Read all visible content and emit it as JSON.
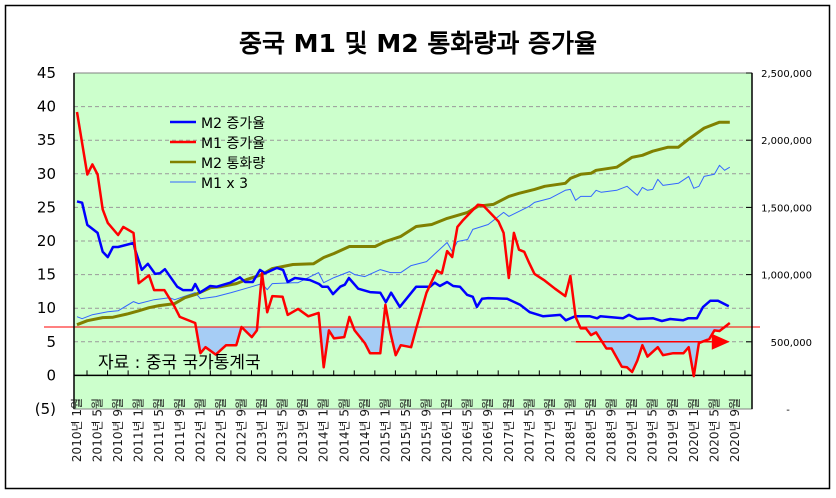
{
  "chart_data": {
    "type": "line",
    "title": "중국 M1 및 M2 통화량과 증가율",
    "source_note": "자료 : 중국 국가통계국",
    "x_unit": "months since 2010년 1월",
    "x_tick_labels": [
      "2010년 1월",
      "2010년 5월",
      "2010년 9월",
      "2011년 1월",
      "2011년 5월",
      "2011년 9월",
      "2012년 1월",
      "2012년 5월",
      "2012년 9월",
      "2013년 1월",
      "2013년 5월",
      "2013년 9월",
      "2014년 1월",
      "2014년 5월",
      "2014년 9월",
      "2015년 1월",
      "2015년 5월",
      "2015년 9월",
      "2016년 1월",
      "2016년 5월",
      "2016년 9월",
      "2017년 1월",
      "2017년 5월",
      "2017년 9월",
      "2018년 1월",
      "2018년 5월",
      "2018년 9월",
      "2019년 1월",
      "2019년 5월",
      "2019년 9월",
      "2020년 1월",
      "2020년 5월",
      "2020년 9월"
    ],
    "y_left": {
      "range": [
        -5,
        45
      ],
      "ticks": [
        -5,
        0,
        5,
        10,
        15,
        20,
        25,
        30,
        35,
        40,
        45
      ],
      "tick_labels": [
        "(5)",
        "0",
        "5",
        "10",
        "15",
        "20",
        "25",
        "30",
        "35",
        "40",
        "45"
      ]
    },
    "y_right": {
      "range": [
        0,
        2500000
      ],
      "ticks": [
        0,
        500000,
        1000000,
        1500000,
        2000000,
        2500000
      ],
      "tick_labels": [
        "-",
        "500,000",
        "1,000,000",
        "1,500,000",
        "2,000,000",
        "2,500,000"
      ]
    },
    "grid": "horizontal dashed",
    "legend_position": "top-left",
    "reference_line": 7.2,
    "arrow": {
      "from_x": 97,
      "to_x": 127,
      "y": 5
    },
    "colors": {
      "bg": "#ccffcc",
      "m2_growth": "#0000ff",
      "m1_growth": "#ff0000",
      "m2_amount": "#808000",
      "m1x3": "#3366ff",
      "shade": "#a6cdf5"
    },
    "series": [
      {
        "name": "M2 증가율",
        "axis": "left",
        "points": [
          [
            0,
            25.9
          ],
          [
            1,
            25.7
          ],
          [
            2,
            22.4
          ],
          [
            4,
            21.2
          ],
          [
            5,
            18.4
          ],
          [
            6,
            17.6
          ],
          [
            7,
            19.1
          ],
          [
            8,
            19.1
          ],
          [
            11,
            19.7
          ],
          [
            11.3,
            18.7
          ],
          [
            12.6,
            15.7
          ],
          [
            13.8,
            16.6
          ],
          [
            15.2,
            15.1
          ],
          [
            16.1,
            15.2
          ],
          [
            17.1,
            15.8
          ],
          [
            19.5,
            13.2
          ],
          [
            20.6,
            12.7
          ],
          [
            22.4,
            12.7
          ],
          [
            23,
            13.6
          ],
          [
            23.9,
            12.3
          ],
          [
            25.9,
            13.3
          ],
          [
            27.2,
            13.2
          ],
          [
            29.8,
            13.8
          ],
          [
            31.7,
            14.6
          ],
          [
            32.7,
            13.9
          ],
          [
            34.2,
            13.9
          ],
          [
            35.6,
            15.7
          ],
          [
            36.6,
            15.2
          ],
          [
            38.9,
            16.0
          ],
          [
            40.1,
            15.7
          ],
          [
            41,
            13.9
          ],
          [
            42.4,
            14.5
          ],
          [
            45.3,
            14.2
          ],
          [
            47.1,
            13.6
          ],
          [
            47.7,
            13.2
          ],
          [
            48.8,
            13.2
          ],
          [
            49.8,
            12.1
          ],
          [
            51.2,
            13.2
          ],
          [
            52.1,
            13.5
          ],
          [
            52.9,
            14.5
          ],
          [
            54.7,
            12.9
          ],
          [
            57,
            12.4
          ],
          [
            59,
            12.3
          ],
          [
            60.1,
            10.9
          ],
          [
            61.1,
            12.3
          ],
          [
            62.8,
            10.2
          ],
          [
            66,
            13.2
          ],
          [
            68.7,
            13.2
          ],
          [
            69.6,
            13.8
          ],
          [
            70.6,
            13.3
          ],
          [
            72,
            13.9
          ],
          [
            73.2,
            13.3
          ],
          [
            74.5,
            13.2
          ],
          [
            75.9,
            12.0
          ],
          [
            77,
            11.7
          ],
          [
            77.8,
            10.2
          ],
          [
            78.8,
            11.4
          ],
          [
            80,
            11.5
          ],
          [
            83.7,
            11.4
          ],
          [
            86.2,
            10.5
          ],
          [
            88.1,
            9.4
          ],
          [
            90.7,
            8.8
          ],
          [
            94,
            9.0
          ],
          [
            95.1,
            8.2
          ],
          [
            96.9,
            8.8
          ],
          [
            99.8,
            8.8
          ],
          [
            101.2,
            8.5
          ],
          [
            101.8,
            8.8
          ],
          [
            106.2,
            8.5
          ],
          [
            107.4,
            9.0
          ],
          [
            109,
            8.4
          ],
          [
            112.1,
            8.5
          ],
          [
            113.8,
            8.1
          ],
          [
            115.4,
            8.4
          ],
          [
            117.9,
            8.2
          ],
          [
            118.9,
            8.5
          ],
          [
            120.6,
            8.5
          ],
          [
            121.8,
            10.2
          ],
          [
            123.2,
            11.1
          ],
          [
            124.7,
            11.1
          ],
          [
            126.8,
            10.3
          ]
        ]
      },
      {
        "name": "M1 증가율",
        "axis": "left",
        "points": [
          [
            0,
            39.2
          ],
          [
            2,
            29.9
          ],
          [
            3,
            31.4
          ],
          [
            4,
            29.9
          ],
          [
            5,
            24.7
          ],
          [
            6,
            22.7
          ],
          [
            8,
            20.9
          ],
          [
            9,
            22.1
          ],
          [
            11,
            21.2
          ],
          [
            12,
            13.7
          ],
          [
            14,
            14.9
          ],
          [
            15,
            12.7
          ],
          [
            17,
            12.7
          ],
          [
            19,
            10.2
          ],
          [
            20,
            8.7
          ],
          [
            23,
            7.8
          ],
          [
            24,
            3.3
          ],
          [
            25,
            4.2
          ],
          [
            27,
            3.1
          ],
          [
            29,
            4.5
          ],
          [
            31,
            4.5
          ],
          [
            32,
            7.2
          ],
          [
            34,
            5.7
          ],
          [
            35,
            6.7
          ],
          [
            36,
            15.2
          ],
          [
            37,
            9.4
          ],
          [
            38,
            11.8
          ],
          [
            40,
            11.7
          ],
          [
            41,
            9.0
          ],
          [
            43,
            9.9
          ],
          [
            45,
            8.8
          ],
          [
            47,
            9.3
          ],
          [
            48,
            1.2
          ],
          [
            49,
            6.7
          ],
          [
            50,
            5.5
          ],
          [
            52,
            5.7
          ],
          [
            53,
            8.7
          ],
          [
            54,
            6.7
          ],
          [
            56,
            4.8
          ],
          [
            57,
            3.3
          ],
          [
            59,
            3.3
          ],
          [
            60,
            10.5
          ],
          [
            61,
            6.3
          ],
          [
            62,
            3.0
          ],
          [
            63,
            4.5
          ],
          [
            65,
            4.2
          ],
          [
            66,
            7.0
          ],
          [
            68,
            12.3
          ],
          [
            70,
            15.6
          ],
          [
            71,
            15.2
          ],
          [
            72,
            18.5
          ],
          [
            73,
            17.6
          ],
          [
            74,
            22.1
          ],
          [
            75,
            23.0
          ],
          [
            78,
            25.4
          ],
          [
            79,
            25.3
          ],
          [
            82,
            22.9
          ],
          [
            83,
            21.2
          ],
          [
            84,
            14.5
          ],
          [
            85,
            21.2
          ],
          [
            86,
            18.7
          ],
          [
            87,
            18.4
          ],
          [
            88,
            16.7
          ],
          [
            89,
            15.1
          ],
          [
            91,
            14.1
          ],
          [
            93,
            12.9
          ],
          [
            95,
            11.8
          ],
          [
            96,
            14.8
          ],
          [
            97,
            8.7
          ],
          [
            98,
            7.0
          ],
          [
            99,
            7.0
          ],
          [
            100,
            6.0
          ],
          [
            101,
            6.4
          ],
          [
            103,
            4.0
          ],
          [
            104,
            4.0
          ],
          [
            106,
            1.3
          ],
          [
            107,
            1.2
          ],
          [
            108,
            0.5
          ],
          [
            109,
            2.2
          ],
          [
            110,
            4.5
          ],
          [
            111,
            2.8
          ],
          [
            113,
            4.2
          ],
          [
            114,
            3.0
          ],
          [
            116,
            3.3
          ],
          [
            118,
            3.3
          ],
          [
            119,
            4.2
          ],
          [
            120,
            -0.1
          ],
          [
            121,
            4.8
          ],
          [
            123,
            5.4
          ],
          [
            124,
            6.7
          ],
          [
            125,
            6.6
          ],
          [
            127,
            7.8
          ]
        ]
      },
      {
        "name": "M2 통화량",
        "axis": "right",
        "points": [
          [
            0,
            627000
          ],
          [
            2,
            657000
          ],
          [
            5,
            680000
          ],
          [
            7,
            683000
          ],
          [
            10,
            709000
          ],
          [
            12,
            731000
          ],
          [
            14,
            754000
          ],
          [
            16,
            769000
          ],
          [
            19,
            784000
          ],
          [
            21,
            828000
          ],
          [
            23,
            851000
          ],
          [
            26,
            903000
          ],
          [
            28,
            910000
          ],
          [
            31,
            933000
          ],
          [
            33,
            963000
          ],
          [
            36,
            1000000
          ],
          [
            38,
            1045000
          ],
          [
            42,
            1075000
          ],
          [
            46,
            1080000
          ],
          [
            48,
            1127000
          ],
          [
            50,
            1157000
          ],
          [
            53,
            1209000
          ],
          [
            58,
            1209000
          ],
          [
            60,
            1246000
          ],
          [
            63,
            1284000
          ],
          [
            66,
            1358000
          ],
          [
            69,
            1373000
          ],
          [
            72,
            1418000
          ],
          [
            76,
            1463000
          ],
          [
            78,
            1508000
          ],
          [
            81,
            1522000
          ],
          [
            84,
            1582000
          ],
          [
            86,
            1605000
          ],
          [
            89,
            1634000
          ],
          [
            91,
            1657000
          ],
          [
            95,
            1679000
          ],
          [
            96,
            1716000
          ],
          [
            98,
            1746000
          ],
          [
            100,
            1754000
          ],
          [
            101,
            1776000
          ],
          [
            105,
            1799000
          ],
          [
            108,
            1873000
          ],
          [
            110,
            1888000
          ],
          [
            112,
            1918000
          ],
          [
            115,
            1948000
          ],
          [
            117,
            1948000
          ],
          [
            119,
            2008000
          ],
          [
            122,
            2090000
          ],
          [
            125,
            2134000
          ],
          [
            127,
            2134000
          ]
        ]
      },
      {
        "name": "M1 x 3",
        "axis": "right",
        "points": [
          [
            0,
            687000
          ],
          [
            1,
            672000
          ],
          [
            3,
            702000
          ],
          [
            6,
            724000
          ],
          [
            8,
            731000
          ],
          [
            11,
            799000
          ],
          [
            12,
            784000
          ],
          [
            15,
            813000
          ],
          [
            18,
            828000
          ],
          [
            19,
            813000
          ],
          [
            23,
            866000
          ],
          [
            24,
            821000
          ],
          [
            27,
            836000
          ],
          [
            30,
            866000
          ],
          [
            34,
            910000
          ],
          [
            36,
            933000
          ],
          [
            37,
            888000
          ],
          [
            38,
            933000
          ],
          [
            42,
            940000
          ],
          [
            43,
            940000
          ],
          [
            47,
            1015000
          ],
          [
            48,
            940000
          ],
          [
            50,
            978000
          ],
          [
            53,
            1022000
          ],
          [
            54,
            1000000
          ],
          [
            56,
            985000
          ],
          [
            59,
            1037000
          ],
          [
            61,
            1015000
          ],
          [
            63,
            1015000
          ],
          [
            65,
            1067000
          ],
          [
            68,
            1097000
          ],
          [
            72,
            1239000
          ],
          [
            73,
            1172000
          ],
          [
            74,
            1246000
          ],
          [
            76,
            1261000
          ],
          [
            77,
            1336000
          ],
          [
            80,
            1373000
          ],
          [
            83,
            1463000
          ],
          [
            84,
            1433000
          ],
          [
            88,
            1508000
          ],
          [
            89,
            1537000
          ],
          [
            92,
            1567000
          ],
          [
            95,
            1627000
          ],
          [
            96,
            1634000
          ],
          [
            97,
            1552000
          ],
          [
            98,
            1582000
          ],
          [
            100,
            1582000
          ],
          [
            101,
            1627000
          ],
          [
            102,
            1612000
          ],
          [
            105,
            1627000
          ],
          [
            107,
            1657000
          ],
          [
            109,
            1590000
          ],
          [
            110,
            1649000
          ],
          [
            111,
            1627000
          ],
          [
            112,
            1634000
          ],
          [
            113,
            1709000
          ],
          [
            114,
            1664000
          ],
          [
            117,
            1679000
          ],
          [
            119,
            1731000
          ],
          [
            120,
            1642000
          ],
          [
            121,
            1657000
          ],
          [
            122,
            1731000
          ],
          [
            124,
            1746000
          ],
          [
            125,
            1813000
          ],
          [
            126,
            1776000
          ],
          [
            127,
            1799000
          ]
        ]
      }
    ]
  }
}
